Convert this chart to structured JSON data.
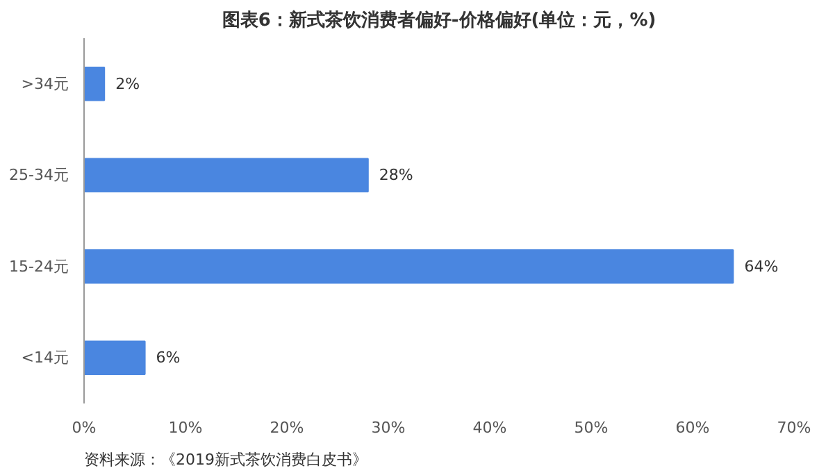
{
  "chart_data": {
    "type": "bar",
    "orientation": "horizontal",
    "title": "图表6：新式茶饮消费者偏好-价格偏好(单位：元，%)",
    "categories": [
      ">34元",
      "25-34元",
      "15-24元",
      "<14元"
    ],
    "values": [
      2,
      28,
      64,
      6
    ],
    "value_labels": [
      "2%",
      "28%",
      "64%",
      "6%"
    ],
    "color": "#4a86e0",
    "xlim": [
      0,
      70
    ],
    "xticks": [
      {
        "value": 0,
        "label": "0%"
      },
      {
        "value": 10,
        "label": "10%"
      },
      {
        "value": 20,
        "label": "20%"
      },
      {
        "value": 30,
        "label": "30%"
      },
      {
        "value": 40,
        "label": "40%"
      },
      {
        "value": 50,
        "label": "50%"
      },
      {
        "value": 60,
        "label": "60%"
      },
      {
        "value": 70,
        "label": "70%"
      }
    ],
    "grid": false,
    "annotations": [
      "资料来源：《2019新式茶饮消费白皮书》"
    ]
  }
}
